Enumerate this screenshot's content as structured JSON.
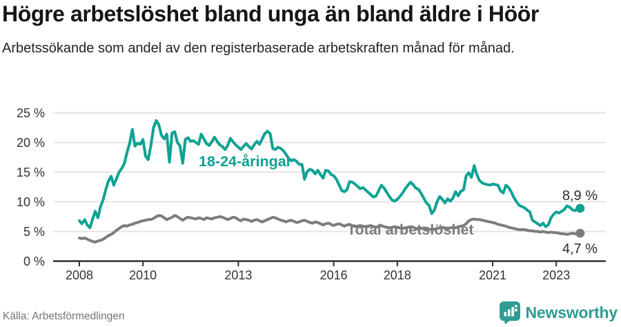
{
  "title": "Högre arbetslöshet bland unga än bland äldre i Höör",
  "subtitle": "Arbetssökande som andel av den registerbaserade arbetskraften månad för månad.",
  "source": "Källa: Arbetsförmedlingen",
  "branding": {
    "name": "Newsworthy",
    "icon": "bar-chart-speech-bubble-icon",
    "color": "#2e9c92"
  },
  "chart_data": {
    "type": "line",
    "x_start": "2008-01",
    "x_end": "2023-10",
    "x_unit": "month",
    "ylim": [
      0,
      25
    ],
    "grid": "horizontal",
    "y_ticks": [
      {
        "value": 0,
        "label": "0 %"
      },
      {
        "value": 5,
        "label": "5 %"
      },
      {
        "value": 10,
        "label": "10 %"
      },
      {
        "value": 15,
        "label": "15 %"
      },
      {
        "value": 20,
        "label": "20 %"
      },
      {
        "value": 25,
        "label": "25 %"
      }
    ],
    "x_ticks": [
      {
        "month_index": 0,
        "label": "2008"
      },
      {
        "month_index": 24,
        "label": "2010"
      },
      {
        "month_index": 60,
        "label": "2013"
      },
      {
        "month_index": 96,
        "label": "2016"
      },
      {
        "month_index": 120,
        "label": "2018"
      },
      {
        "month_index": 156,
        "label": "2021"
      },
      {
        "month_index": 180,
        "label": "2023"
      }
    ],
    "series": [
      {
        "name": "18-24-åringar",
        "color": "#0ea293",
        "end_value": 8.9,
        "end_label": "8,9 %",
        "values": [
          6.8,
          6.3,
          7.0,
          6.1,
          5.6,
          7.1,
          8.4,
          7.3,
          9.2,
          10.4,
          12.1,
          13.5,
          14.3,
          12.8,
          13.9,
          15.0,
          15.6,
          16.5,
          18.3,
          19.9,
          22.2,
          19.4,
          19.9,
          19.7,
          20.5,
          17.7,
          17.1,
          19.5,
          22.5,
          23.7,
          23.0,
          21.2,
          20.6,
          21.4,
          16.7,
          21.6,
          21.8,
          20.0,
          19.4,
          16.5,
          20.5,
          20.8,
          20.2,
          20.3,
          20.0,
          19.7,
          21.4,
          20.6,
          19.8,
          19.5,
          20.1,
          20.9,
          20.2,
          19.6,
          19.3,
          18.8,
          19.5,
          20.7,
          20.1,
          19.6,
          19.2,
          18.8,
          19.4,
          19.8,
          19.3,
          18.9,
          19.6,
          20.2,
          19.7,
          20.6,
          21.5,
          21.9,
          21.5,
          19.0,
          18.8,
          19.2,
          19.0,
          18.6,
          18.0,
          17.3,
          16.9,
          17.1,
          16.8,
          16.3,
          16.3,
          13.8,
          15.1,
          15.5,
          15.3,
          14.7,
          15.3,
          14.6,
          14.0,
          15.3,
          15.2,
          14.6,
          14.4,
          13.8,
          12.9,
          11.9,
          11.7,
          12.0,
          13.4,
          13.3,
          13.0,
          12.6,
          12.2,
          12.4,
          12.0,
          11.6,
          11.2,
          10.8,
          11.0,
          11.9,
          12.8,
          12.3,
          11.6,
          10.9,
          10.3,
          10.1,
          10.4,
          10.9,
          11.5,
          12.2,
          12.8,
          13.3,
          12.9,
          12.3,
          12.1,
          11.4,
          10.6,
          9.8,
          9.4,
          8.0,
          8.6,
          10.0,
          10.9,
          10.4,
          9.8,
          10.5,
          10.1,
          10.6,
          11.7,
          11.0,
          11.8,
          12.0,
          14.4,
          14.9,
          14.1,
          16.1,
          14.6,
          13.6,
          13.2,
          13.0,
          12.9,
          12.8,
          13.0,
          12.9,
          12.8,
          11.8,
          11.5,
          12.8,
          12.4,
          11.7,
          10.7,
          10.0,
          9.4,
          9.2,
          9.0,
          8.6,
          8.3,
          6.9,
          6.6,
          6.3,
          6.0,
          6.4,
          5.8,
          6.1,
          7.3,
          7.9,
          8.3,
          8.1,
          8.4,
          8.7,
          9.3,
          9.1,
          8.7,
          8.5,
          8.8,
          8.9
        ]
      },
      {
        "name": "Total arbetslöshet",
        "color": "#7c7c7c",
        "end_value": 4.7,
        "end_label": "4,7 %",
        "values": [
          3.9,
          3.8,
          3.9,
          3.7,
          3.5,
          3.3,
          3.2,
          3.4,
          3.5,
          3.7,
          4.0,
          4.3,
          4.5,
          4.8,
          5.2,
          5.5,
          5.8,
          6.0,
          5.9,
          6.1,
          6.2,
          6.4,
          6.5,
          6.7,
          6.8,
          6.9,
          7.0,
          7.0,
          7.2,
          7.5,
          7.7,
          7.6,
          7.3,
          7.0,
          7.2,
          7.4,
          7.7,
          7.5,
          7.2,
          6.9,
          7.2,
          7.4,
          7.3,
          7.2,
          7.1,
          7.3,
          7.2,
          7.0,
          7.3,
          7.2,
          7.1,
          7.3,
          7.4,
          7.5,
          7.4,
          7.2,
          7.0,
          7.2,
          7.4,
          7.3,
          7.0,
          6.8,
          7.1,
          7.0,
          6.9,
          6.7,
          6.9,
          7.0,
          6.8,
          6.6,
          6.8,
          7.0,
          7.2,
          7.4,
          7.3,
          7.1,
          6.9,
          6.8,
          6.6,
          6.8,
          6.9,
          6.7,
          6.5,
          6.6,
          6.8,
          6.9,
          6.7,
          6.5,
          6.4,
          6.6,
          6.5,
          6.3,
          6.1,
          6.3,
          6.4,
          6.2,
          6.0,
          6.2,
          6.3,
          6.1,
          5.9,
          6.1,
          6.2,
          6.0,
          5.8,
          5.9,
          6.0,
          5.9,
          5.8,
          5.9,
          6.0,
          5.8,
          5.7,
          5.9,
          6.0,
          5.8,
          5.7,
          5.6,
          5.7,
          5.8,
          5.7,
          5.6,
          5.5,
          5.6,
          5.7,
          5.8,
          5.7,
          5.5,
          5.4,
          5.5,
          5.6,
          5.5,
          5.4,
          5.3,
          5.4,
          5.5,
          5.6,
          5.7,
          5.6,
          5.5,
          5.6,
          5.7,
          5.6,
          5.8,
          5.9,
          6.0,
          6.3,
          6.8,
          7.0,
          7.1,
          7.0,
          7.0,
          6.9,
          6.8,
          6.7,
          6.6,
          6.5,
          6.4,
          6.2,
          6.1,
          6.0,
          5.9,
          5.7,
          5.6,
          5.5,
          5.4,
          5.3,
          5.3,
          5.3,
          5.2,
          5.1,
          5.1,
          5.0,
          5.0,
          4.9,
          5.0,
          4.9,
          4.8,
          4.9,
          4.8,
          4.8,
          4.7,
          4.6,
          4.6,
          4.5,
          4.6,
          4.7,
          4.6,
          4.7,
          4.7
        ]
      }
    ],
    "style": {
      "grid_color": "#e3e3e3",
      "axis_color": "#2f2f2f",
      "tick_label_color": "#333333",
      "value_label_color": "#2b2b2b"
    }
  }
}
